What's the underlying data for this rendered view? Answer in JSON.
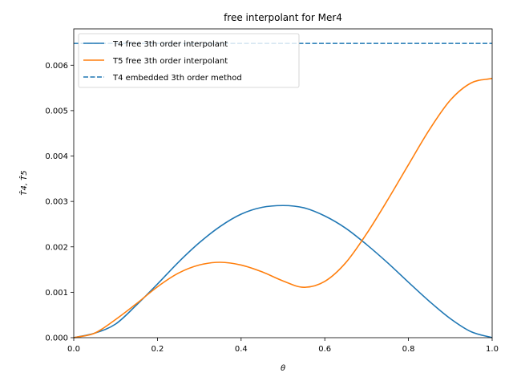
{
  "chart_data": {
    "type": "line",
    "title": "free interpolant for Mer4",
    "xlabel": "θ",
    "ylabel": "T̂4, T̂5",
    "xlim": [
      0.0,
      1.0
    ],
    "ylim": [
      0.0,
      0.0068
    ],
    "xticks": [
      "0.0",
      "0.2",
      "0.4",
      "0.6",
      "0.8",
      "1.0"
    ],
    "yticks": [
      "0.000",
      "0.001",
      "0.002",
      "0.003",
      "0.004",
      "0.005",
      "0.006"
    ],
    "legend_position": "top-left",
    "grid": false,
    "series": [
      {
        "name": "T4 free 3th order interpolant",
        "color": "#1f77b4",
        "style": "solid",
        "x": [
          0.0,
          0.05,
          0.1,
          0.15,
          0.2,
          0.25,
          0.3,
          0.35,
          0.4,
          0.45,
          0.5,
          0.55,
          0.6,
          0.65,
          0.7,
          0.75,
          0.8,
          0.85,
          0.9,
          0.95,
          1.0
        ],
        "y": [
          0.0,
          0.0001,
          0.0003,
          0.00072,
          0.00118,
          0.00166,
          0.00209,
          0.00245,
          0.00272,
          0.00287,
          0.00291,
          0.00286,
          0.00268,
          0.00241,
          0.00205,
          0.00165,
          0.00122,
          0.0008,
          0.00042,
          0.00013,
          0.0
        ]
      },
      {
        "name": "T5 free 3th order interpolant",
        "color": "#ff7f0e",
        "style": "solid",
        "x": [
          0.0,
          0.05,
          0.1,
          0.15,
          0.2,
          0.25,
          0.3,
          0.35,
          0.4,
          0.45,
          0.5,
          0.55,
          0.6,
          0.65,
          0.7,
          0.75,
          0.8,
          0.85,
          0.9,
          0.95,
          1.0
        ],
        "y": [
          0.0,
          0.0001,
          0.0004,
          0.00075,
          0.00112,
          0.00142,
          0.0016,
          0.00166,
          0.0016,
          0.00145,
          0.00125,
          0.00111,
          0.00124,
          0.00165,
          0.00229,
          0.00303,
          0.00381,
          0.00458,
          0.00523,
          0.00561,
          0.00571
        ]
      },
      {
        "name": "T4 embedded 3th order method",
        "color": "#1f77b4",
        "style": "dashed",
        "x": [
          0.0,
          1.0
        ],
        "y": [
          0.00648,
          0.00648
        ]
      }
    ]
  }
}
